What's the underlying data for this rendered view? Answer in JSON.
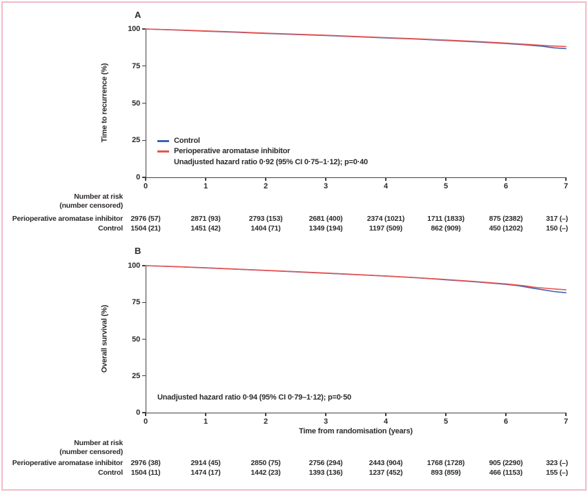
{
  "figure": {
    "border_color": "#f2bac7",
    "axis_color": "#423d3e",
    "panels": [
      {
        "label": "A",
        "ylabel": "Time to recurrence (%)",
        "xlabel": "",
        "yticks": [
          0,
          25,
          50,
          75,
          100
        ],
        "xticks": [
          0,
          1,
          2,
          3,
          4,
          5,
          6,
          7
        ],
        "show_legend": true,
        "legend": [
          {
            "name": "Control",
            "color": "#3f63ae"
          },
          {
            "name": "Perioperative aromatase inhibitor",
            "color": "#e8534f"
          }
        ],
        "annotation": "Unadjusted hazard ratio 0·92 (95% CI 0·75–1·12); p=0·40",
        "risk_table": {
          "header_line1": "Number at risk",
          "header_line2": "(number censored)",
          "rows": [
            {
              "label": "Perioperative aromatase inhibitor",
              "values": [
                "2976 (57)",
                "2871 (93)",
                "2793 (153)",
                "2681 (400)",
                "2374 (1021)",
                "1711 (1833)",
                "875 (2382)",
                "317 (–)"
              ]
            },
            {
              "label": "Control",
              "values": [
                "1504 (21)",
                "1451 (42)",
                "1404 (71)",
                "1349 (194)",
                "1197 (509)",
                "862 (909)",
                "450 (1202)",
                "150 (–)"
              ]
            }
          ]
        }
      },
      {
        "label": "B",
        "ylabel": "Overall survival (%)",
        "xlabel": "Time from randomisation (years)",
        "yticks": [
          0,
          25,
          50,
          75,
          100
        ],
        "xticks": [
          0,
          1,
          2,
          3,
          4,
          5,
          6,
          7
        ],
        "show_legend": false,
        "legend": [
          {
            "name": "Control",
            "color": "#3f63ae"
          },
          {
            "name": "Perioperative aromatase inhibitor",
            "color": "#e8534f"
          }
        ],
        "annotation": "Unadjusted hazard ratio 0·94 (95% CI 0·79–1·12); p=0·50",
        "risk_table": {
          "header_line1": "Number at risk",
          "header_line2": "(number censored)",
          "rows": [
            {
              "label": "Perioperative aromatase inhibitor",
              "values": [
                "2976 (38)",
                "2914 (45)",
                "2850 (75)",
                "2756 (294)",
                "2443 (904)",
                "1768 (1728)",
                "905 (2290)",
                "323 (–)"
              ]
            },
            {
              "label": "Control",
              "values": [
                "1504 (11)",
                "1474 (17)",
                "1442 (23)",
                "1393 (136)",
                "1237 (452)",
                "893 (859)",
                "466 (1153)",
                "155 (–)"
              ]
            }
          ]
        }
      }
    ]
  },
  "chart_data": [
    {
      "type": "line",
      "panel": "A",
      "title": "",
      "xlabel": "",
      "ylabel": "Time to recurrence (%)",
      "xlim": [
        0,
        7
      ],
      "ylim": [
        0,
        100
      ],
      "grid": false,
      "legend_position": "lower-left",
      "series": [
        {
          "name": "Control",
          "color": "#3f63ae",
          "points": [
            [
              0,
              100
            ],
            [
              0.5,
              99.3
            ],
            [
              1,
              98.5
            ],
            [
              1.5,
              97.8
            ],
            [
              2,
              97.0
            ],
            [
              2.5,
              96.3
            ],
            [
              3,
              95.6
            ],
            [
              3.5,
              94.8
            ],
            [
              4,
              94.0
            ],
            [
              4.5,
              93.2
            ],
            [
              5,
              92.3
            ],
            [
              5.5,
              91.3
            ],
            [
              6,
              90.2
            ],
            [
              6.3,
              89.4
            ],
            [
              6.6,
              88.4
            ],
            [
              6.8,
              87.3
            ],
            [
              7,
              86.8
            ]
          ]
        },
        {
          "name": "Perioperative aromatase inhibitor",
          "color": "#e8534f",
          "points": [
            [
              0,
              100
            ],
            [
              0.5,
              99.4
            ],
            [
              1,
              98.7
            ],
            [
              1.5,
              98.0
            ],
            [
              2,
              97.2
            ],
            [
              2.5,
              96.5
            ],
            [
              3,
              95.8
            ],
            [
              3.5,
              95.0
            ],
            [
              4,
              94.2
            ],
            [
              4.5,
              93.4
            ],
            [
              5,
              92.5
            ],
            [
              5.5,
              91.6
            ],
            [
              6,
              90.5
            ],
            [
              6.4,
              89.5
            ],
            [
              6.7,
              88.7
            ],
            [
              7,
              88.2
            ]
          ]
        }
      ],
      "annotation": "Unadjusted hazard ratio 0·92 (95% CI 0·75–1·12); p=0·40"
    },
    {
      "type": "line",
      "panel": "B",
      "title": "",
      "xlabel": "Time from randomisation (years)",
      "ylabel": "Overall survival (%)",
      "xlim": [
        0,
        7
      ],
      "ylim": [
        0,
        100
      ],
      "grid": false,
      "legend_position": "none",
      "series": [
        {
          "name": "Control",
          "color": "#3f63ae",
          "points": [
            [
              0,
              100
            ],
            [
              0.5,
              99.3
            ],
            [
              1,
              98.5
            ],
            [
              1.5,
              97.6
            ],
            [
              2,
              96.7
            ],
            [
              2.5,
              95.8
            ],
            [
              3,
              94.9
            ],
            [
              3.5,
              93.9
            ],
            [
              4,
              92.9
            ],
            [
              4.5,
              91.8
            ],
            [
              5,
              90.4
            ],
            [
              5.5,
              89.0
            ],
            [
              6,
              87.3
            ],
            [
              6.2,
              86.4
            ],
            [
              6.4,
              85.0
            ],
            [
              6.6,
              83.7
            ],
            [
              6.8,
              82.4
            ],
            [
              7,
              81.6
            ]
          ]
        },
        {
          "name": "Perioperative aromatase inhibitor",
          "color": "#e8534f",
          "points": [
            [
              0,
              100
            ],
            [
              0.5,
              99.4
            ],
            [
              1,
              98.6
            ],
            [
              1.5,
              97.7
            ],
            [
              2,
              96.8
            ],
            [
              2.5,
              95.9
            ],
            [
              3,
              95.0
            ],
            [
              3.5,
              94.0
            ],
            [
              4,
              93.0
            ],
            [
              4.5,
              91.9
            ],
            [
              5,
              90.6
            ],
            [
              5.5,
              89.2
            ],
            [
              6,
              87.6
            ],
            [
              6.3,
              86.4
            ],
            [
              6.5,
              85.2
            ],
            [
              6.7,
              84.5
            ],
            [
              6.85,
              84.0
            ],
            [
              7,
              83.6
            ]
          ]
        }
      ],
      "annotation": "Unadjusted hazard ratio 0·94 (95% CI 0·79–1·12); p=0·50"
    }
  ]
}
